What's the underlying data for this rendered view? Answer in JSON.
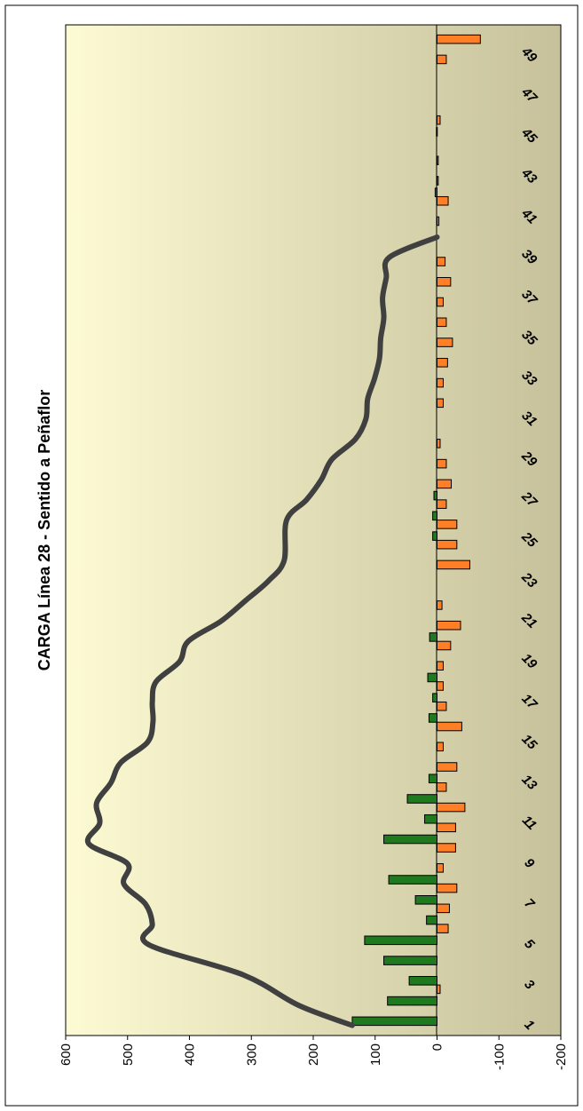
{
  "chart_data": {
    "type": "bar",
    "title": "CARGA Línea 28 - Sentido a Peñaflor",
    "orientation": "rotated-90-clockwise",
    "ylim": [
      -200,
      600
    ],
    "y_ticks": [
      600,
      500,
      400,
      300,
      200,
      100,
      0,
      -100,
      -200
    ],
    "x_tick_labels": [
      "1",
      "3",
      "5",
      "7",
      "9",
      "11",
      "13",
      "15",
      "17",
      "19",
      "21",
      "23",
      "25",
      "27",
      "29",
      "31",
      "33",
      "35",
      "37",
      "39",
      "41",
      "43",
      "45",
      "47",
      "49"
    ],
    "stops": [
      1,
      2,
      3,
      4,
      5,
      6,
      7,
      8,
      9,
      10,
      11,
      12,
      13,
      14,
      15,
      16,
      17,
      18,
      19,
      20,
      21,
      22,
      23,
      24,
      25,
      26,
      27,
      28,
      29,
      30,
      31,
      32,
      33,
      34,
      35,
      36,
      37,
      38,
      39,
      40,
      41,
      42,
      43,
      44,
      45,
      46,
      47,
      48,
      49,
      50
    ],
    "series": [
      {
        "type": "bar",
        "color": "#1f7a1f",
        "values": [
          137,
          80,
          45,
          86,
          117,
          17,
          35,
          78,
          0,
          86,
          20,
          48,
          13,
          0,
          0,
          13,
          7,
          15,
          0,
          12,
          0,
          0,
          0,
          0,
          7,
          7,
          5,
          0,
          0,
          0,
          0,
          0,
          0,
          0,
          0,
          0,
          0,
          0,
          0,
          0,
          0,
          3,
          0,
          0,
          1,
          0,
          0,
          0,
          0,
          0
        ]
      },
      {
        "type": "bar",
        "color": "#ff7f27",
        "values": [
          0,
          0,
          -5,
          0,
          0,
          -18,
          -20,
          -32,
          -10,
          -30,
          -30,
          -45,
          -15,
          -32,
          -10,
          -40,
          -15,
          -10,
          -10,
          -22,
          -38,
          -8,
          0,
          -53,
          -32,
          -32,
          -15,
          -23,
          -15,
          -5,
          0,
          -10,
          -10,
          -17,
          -25,
          -15,
          -10,
          -22,
          -13,
          0,
          -3,
          -18,
          -2,
          -2,
          0,
          -5,
          0,
          0,
          -15,
          -70
        ]
      },
      {
        "type": "line",
        "color": "#404040",
        "values": [
          137,
          224,
          313,
          466,
          460,
          471,
          506,
          500,
          563,
          545,
          550,
          527,
          511,
          468,
          459,
          460,
          454,
          416,
          402,
          349,
          310,
          272,
          247,
          243,
          211,
          187,
          170,
          132,
          115,
          112,
          101,
          93,
          91,
          86,
          88,
          82,
          77,
          0
        ]
      }
    ],
    "line_positions": [
      1,
      2,
      3.5,
      5,
      6,
      7,
      8,
      9,
      10,
      11,
      12,
      13,
      14,
      15,
      16,
      17,
      18,
      19,
      20,
      21,
      22,
      23,
      24,
      26,
      27,
      28,
      29,
      30,
      31,
      32,
      33,
      34,
      35,
      36,
      37,
      38,
      39,
      40
    ],
    "background": [
      "#fdfbd3",
      "#c6c19b"
    ]
  }
}
